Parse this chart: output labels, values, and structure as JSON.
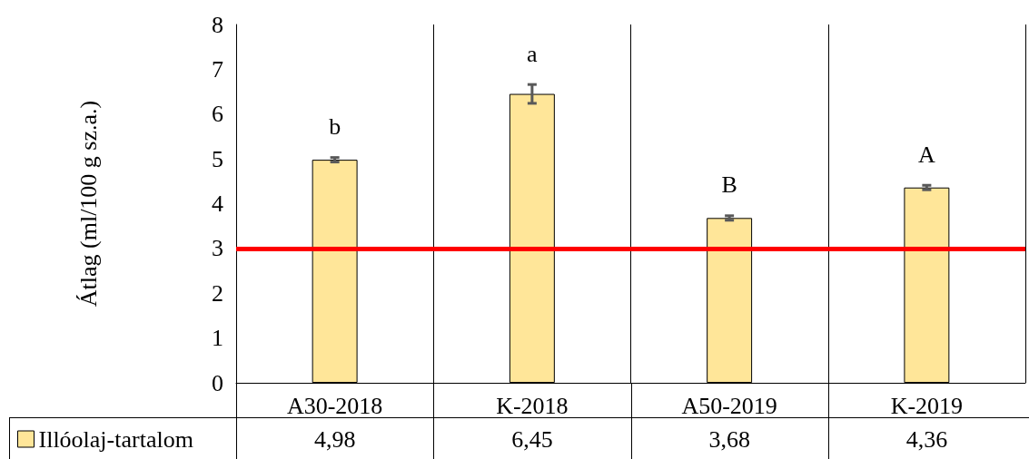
{
  "chart_data": {
    "type": "bar",
    "ylabel": "Átlag (ml/100 g sz.a.)",
    "categories": [
      "A30-2018",
      "K-2018",
      "A50-2019",
      "K-2019"
    ],
    "series": [
      {
        "name": "Illóolaj-tartalom",
        "color": "#ffe699",
        "values": [
          4.98,
          6.45,
          3.68,
          4.36
        ],
        "errors": [
          0.05,
          0.21,
          0.05,
          0.05
        ],
        "value_labels": [
          "4,98",
          "6,45",
          "3,68",
          "4,36"
        ]
      }
    ],
    "ylim": [
      0,
      8
    ],
    "yticks": [
      0,
      1,
      2,
      3,
      4,
      5,
      6,
      7,
      8
    ],
    "grid": "x",
    "legend": "bottom",
    "ref_lines": [
      {
        "axis": "y",
        "value": 3,
        "color": "#ff0000"
      }
    ],
    "annotations": [
      "b",
      "a",
      "B",
      "A"
    ]
  }
}
